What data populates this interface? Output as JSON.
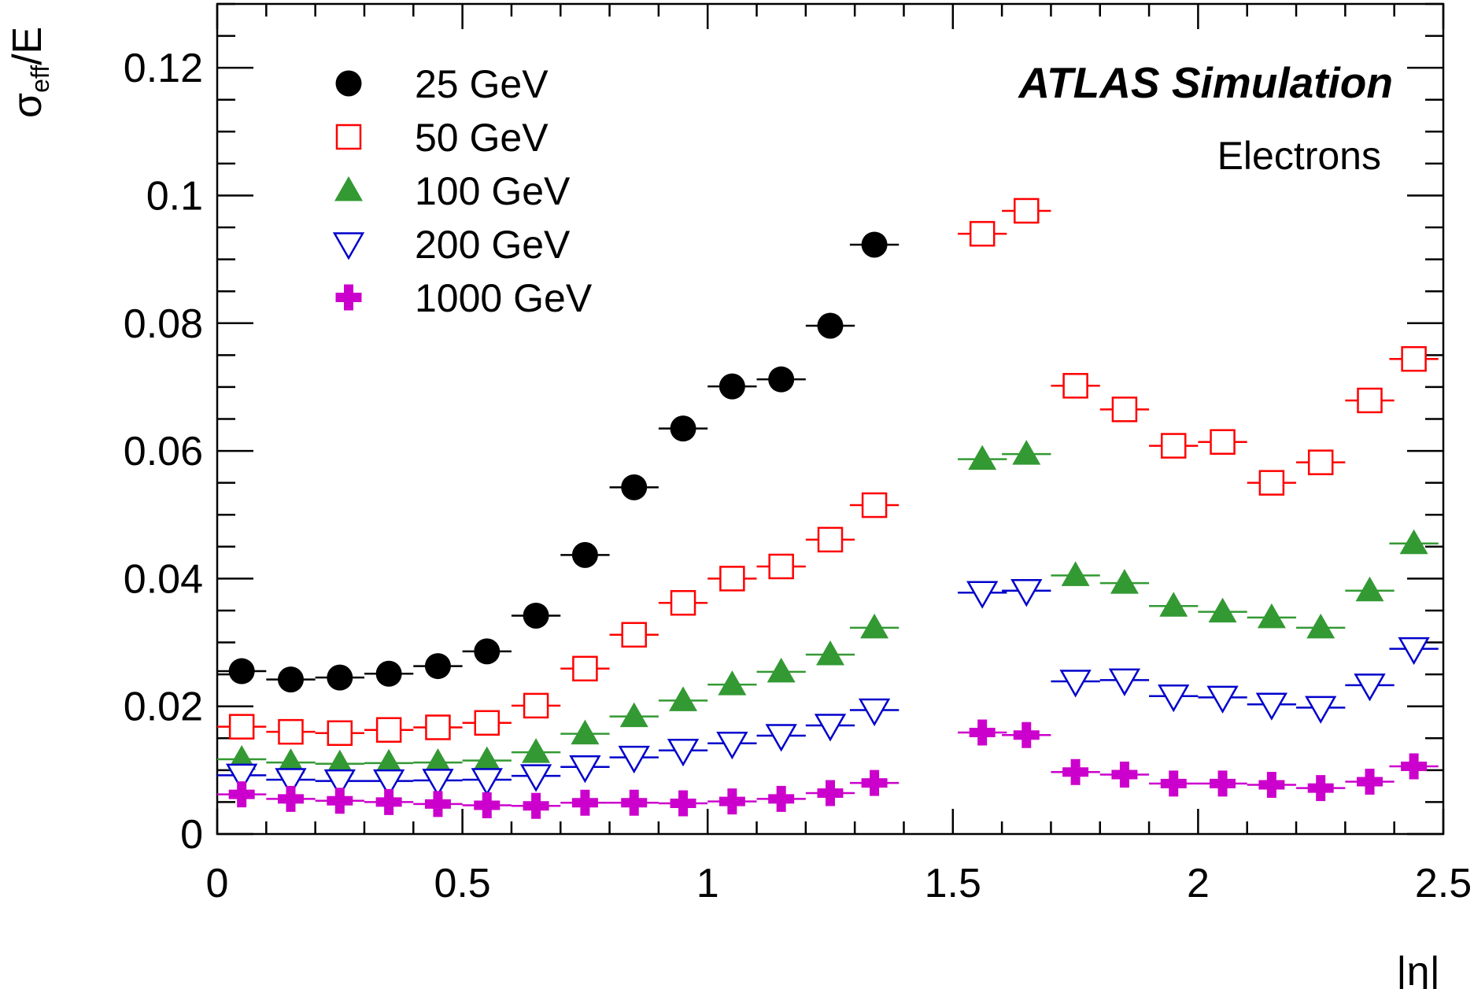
{
  "chart_data": {
    "type": "scatter",
    "title": "",
    "xlabel": "|η|",
    "ylabel": "σeff/E",
    "ylabel_main": "σ",
    "ylabel_sub": "eff",
    "ylabel_rest": "/E",
    "xlim": [
      0,
      2.5
    ],
    "ylim": [
      0,
      0.13
    ],
    "x_ticks": [
      "0",
      "0.5",
      "1",
      "1.5",
      "2",
      "2.5"
    ],
    "y_ticks": [
      "0",
      "0.02",
      "0.04",
      "0.06",
      "0.08",
      "0.1",
      "0.12"
    ],
    "grid": false,
    "legend_position": "top-left",
    "annotations": {
      "experiment": "ATLAS Simulation",
      "sample": "Electrons"
    },
    "series": [
      {
        "name": "25 GeV",
        "marker": "filled-circle",
        "color": "#000000",
        "points": [
          [
            0.05,
            0.0255
          ],
          [
            0.15,
            0.0242
          ],
          [
            0.25,
            0.0245
          ],
          [
            0.35,
            0.0251
          ],
          [
            0.45,
            0.0263
          ],
          [
            0.55,
            0.0286
          ],
          [
            0.65,
            0.0342
          ],
          [
            0.75,
            0.0437
          ],
          [
            0.85,
            0.0543
          ],
          [
            0.95,
            0.0635
          ],
          [
            1.05,
            0.0701
          ],
          [
            1.15,
            0.0712
          ],
          [
            1.25,
            0.0796
          ],
          [
            1.34,
            0.0923
          ]
        ]
      },
      {
        "name": "50 GeV",
        "marker": "open-square",
        "color": "#ff0000",
        "points": [
          [
            0.05,
            0.0168
          ],
          [
            0.15,
            0.016
          ],
          [
            0.25,
            0.0158
          ],
          [
            0.35,
            0.0163
          ],
          [
            0.45,
            0.0167
          ],
          [
            0.55,
            0.0174
          ],
          [
            0.65,
            0.0201
          ],
          [
            0.75,
            0.0259
          ],
          [
            0.85,
            0.0312
          ],
          [
            0.95,
            0.0362
          ],
          [
            1.05,
            0.04
          ],
          [
            1.15,
            0.0419
          ],
          [
            1.25,
            0.0461
          ],
          [
            1.34,
            0.0515
          ],
          [
            1.56,
            0.094
          ],
          [
            1.65,
            0.0976
          ],
          [
            1.75,
            0.0702
          ],
          [
            1.85,
            0.0665
          ],
          [
            1.95,
            0.0608
          ],
          [
            2.05,
            0.0614
          ],
          [
            2.15,
            0.055
          ],
          [
            2.25,
            0.0582
          ],
          [
            2.35,
            0.0679
          ],
          [
            2.44,
            0.0744
          ]
        ]
      },
      {
        "name": "100 GeV",
        "marker": "filled-triangle-up",
        "color": "#339933",
        "points": [
          [
            0.05,
            0.0117
          ],
          [
            0.15,
            0.0112
          ],
          [
            0.25,
            0.011
          ],
          [
            0.35,
            0.0111
          ],
          [
            0.45,
            0.0112
          ],
          [
            0.55,
            0.0115
          ],
          [
            0.65,
            0.0128
          ],
          [
            0.75,
            0.0157
          ],
          [
            0.85,
            0.0184
          ],
          [
            0.95,
            0.0209
          ],
          [
            1.05,
            0.0234
          ],
          [
            1.15,
            0.0254
          ],
          [
            1.25,
            0.0281
          ],
          [
            1.34,
            0.0323
          ],
          [
            1.56,
            0.0587
          ],
          [
            1.65,
            0.0595
          ],
          [
            1.75,
            0.0405
          ],
          [
            1.85,
            0.0393
          ],
          [
            1.95,
            0.0357
          ],
          [
            2.05,
            0.0348
          ],
          [
            2.15,
            0.0339
          ],
          [
            2.25,
            0.0323
          ],
          [
            2.35,
            0.0381
          ],
          [
            2.44,
            0.0455
          ]
        ]
      },
      {
        "name": "200 GeV",
        "marker": "open-triangle-down",
        "color": "#0000cc",
        "points": [
          [
            0.05,
            0.0092
          ],
          [
            0.15,
            0.0085
          ],
          [
            0.25,
            0.0083
          ],
          [
            0.35,
            0.0083
          ],
          [
            0.45,
            0.0084
          ],
          [
            0.55,
            0.0085
          ],
          [
            0.65,
            0.0091
          ],
          [
            0.75,
            0.0105
          ],
          [
            0.85,
            0.012
          ],
          [
            0.95,
            0.0131
          ],
          [
            1.05,
            0.0142
          ],
          [
            1.15,
            0.0154
          ],
          [
            1.25,
            0.017
          ],
          [
            1.34,
            0.0194
          ],
          [
            1.56,
            0.0378
          ],
          [
            1.65,
            0.0381
          ],
          [
            1.75,
            0.0239
          ],
          [
            1.85,
            0.0241
          ],
          [
            1.95,
            0.0216
          ],
          [
            2.05,
            0.0214
          ],
          [
            2.15,
            0.0203
          ],
          [
            2.25,
            0.0198
          ],
          [
            2.35,
            0.0233
          ],
          [
            2.44,
            0.029
          ]
        ]
      },
      {
        "name": "1000 GeV",
        "marker": "filled-cross",
        "color": "#cc00cc",
        "points": [
          [
            0.05,
            0.0062
          ],
          [
            0.15,
            0.0055
          ],
          [
            0.25,
            0.0052
          ],
          [
            0.35,
            0.005
          ],
          [
            0.45,
            0.0047
          ],
          [
            0.55,
            0.0045
          ],
          [
            0.65,
            0.0044
          ],
          [
            0.75,
            0.0049
          ],
          [
            0.85,
            0.0049
          ],
          [
            0.95,
            0.0048
          ],
          [
            1.05,
            0.0051
          ],
          [
            1.15,
            0.0055
          ],
          [
            1.25,
            0.0064
          ],
          [
            1.34,
            0.008
          ],
          [
            1.56,
            0.0159
          ],
          [
            1.65,
            0.0155
          ],
          [
            1.75,
            0.0097
          ],
          [
            1.85,
            0.0093
          ],
          [
            1.95,
            0.0079
          ],
          [
            2.05,
            0.0079
          ],
          [
            2.15,
            0.0077
          ],
          [
            2.25,
            0.0072
          ],
          [
            2.35,
            0.0082
          ],
          [
            2.44,
            0.0106
          ]
        ]
      }
    ]
  }
}
